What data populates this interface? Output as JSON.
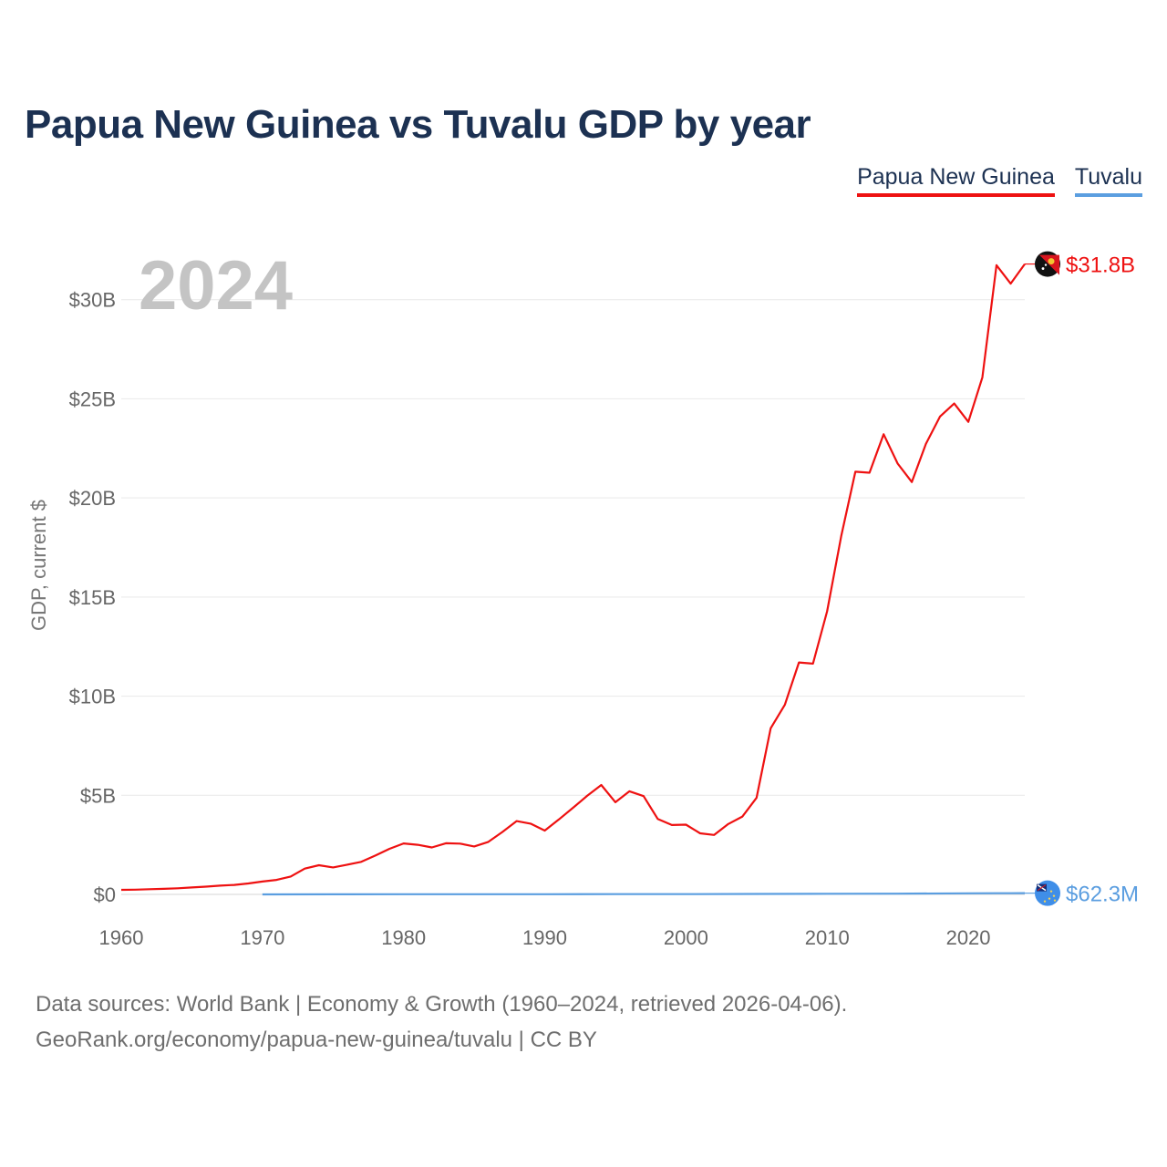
{
  "title": "Papua New Guinea vs Tuvalu GDP by year",
  "legend": {
    "pg": "Papua New Guinea",
    "tv": "Tuvalu"
  },
  "footer": {
    "line1": "Data sources: World Bank | Economy & Growth (1960–2024, retrieved 2026-04-06).",
    "line2": "GeoRank.org/economy/papua-new-guinea/tuvalu | CC BY"
  },
  "chart_data": {
    "type": "line",
    "title": "Papua New Guinea vs Tuvalu GDP by year",
    "year_label": "2024",
    "ylabel": "GDP, current $",
    "xlabel": "",
    "xlim": [
      1960,
      2024
    ],
    "ylim": [
      0,
      32
    ],
    "y_unit": "billions USD",
    "x_ticks": [
      "1960",
      "1970",
      "1980",
      "1990",
      "2000",
      "2010",
      "2020"
    ],
    "y_ticks": [
      {
        "value": 0,
        "label": "$0"
      },
      {
        "value": 5,
        "label": "$5B"
      },
      {
        "value": 10,
        "label": "$10B"
      },
      {
        "value": 15,
        "label": "$15B"
      },
      {
        "value": 20,
        "label": "$20B"
      },
      {
        "value": 25,
        "label": "$25B"
      },
      {
        "value": 30,
        "label": "$30B"
      }
    ],
    "grid": true,
    "legend_position": "top-right",
    "colors": {
      "pg": "#ee1111",
      "tv": "#5b9ee0"
    },
    "series": [
      {
        "name": "Papua New Guinea",
        "key": "pg",
        "end_label": "$31.8B",
        "x": [
          1960,
          1961,
          1962,
          1963,
          1964,
          1965,
          1966,
          1967,
          1968,
          1969,
          1970,
          1971,
          1972,
          1973,
          1974,
          1975,
          1976,
          1977,
          1978,
          1979,
          1980,
          1981,
          1982,
          1983,
          1984,
          1985,
          1986,
          1987,
          1988,
          1989,
          1990,
          1991,
          1992,
          1993,
          1994,
          1995,
          1996,
          1997,
          1998,
          1999,
          2000,
          2001,
          2002,
          2003,
          2004,
          2005,
          2006,
          2007,
          2008,
          2009,
          2010,
          2011,
          2012,
          2013,
          2014,
          2015,
          2016,
          2017,
          2018,
          2019,
          2020,
          2021,
          2022,
          2023,
          2024
        ],
        "values": [
          0.23,
          0.24,
          0.26,
          0.28,
          0.31,
          0.35,
          0.39,
          0.44,
          0.48,
          0.55,
          0.65,
          0.73,
          0.9,
          1.3,
          1.47,
          1.36,
          1.5,
          1.64,
          1.96,
          2.3,
          2.57,
          2.5,
          2.37,
          2.58,
          2.56,
          2.42,
          2.65,
          3.15,
          3.7,
          3.57,
          3.22,
          3.78,
          4.37,
          4.97,
          5.52,
          4.65,
          5.2,
          4.96,
          3.81,
          3.5,
          3.52,
          3.08,
          3.0,
          3.55,
          3.93,
          4.87,
          8.38,
          9.56,
          11.7,
          11.64,
          14.28,
          18.08,
          21.32,
          21.27,
          23.21,
          21.73,
          20.8,
          22.73,
          24.11,
          24.76,
          23.84,
          26.08,
          31.74,
          30.81,
          31.8
        ]
      },
      {
        "name": "Tuvalu",
        "key": "tv",
        "end_label": "$62.3M",
        "x": [
          1970,
          1975,
          1980,
          1985,
          1990,
          1995,
          2000,
          2005,
          2010,
          2015,
          2020,
          2022,
          2023,
          2024
        ],
        "values": [
          0.002,
          0.004,
          0.008,
          0.01,
          0.011,
          0.012,
          0.014,
          0.022,
          0.032,
          0.035,
          0.056,
          0.06,
          0.062,
          0.0623
        ]
      }
    ]
  }
}
